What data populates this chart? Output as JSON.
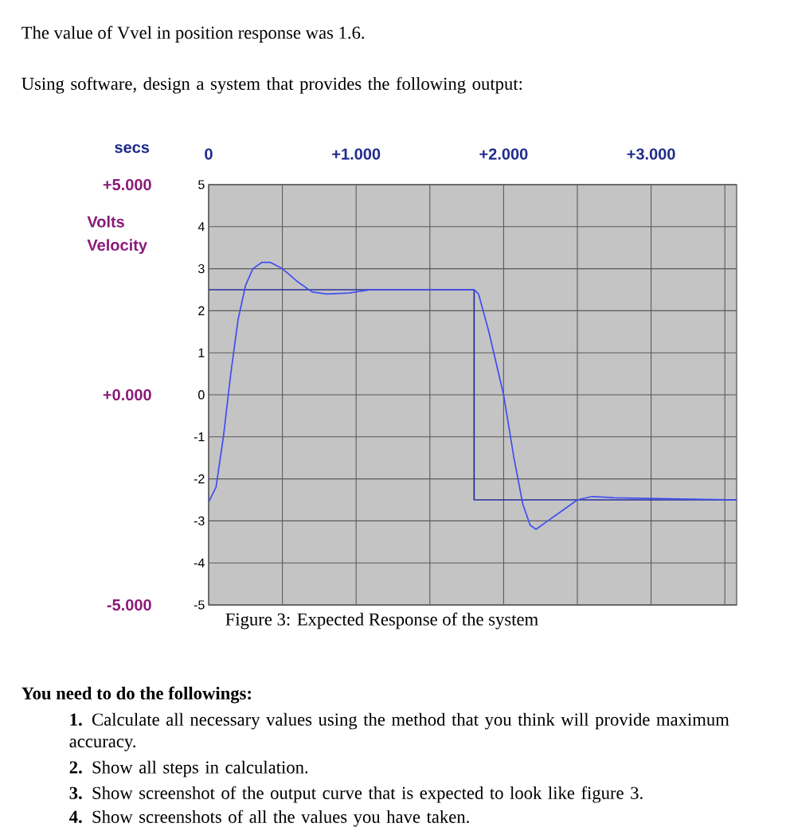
{
  "chart_data": {
    "type": "line",
    "title": "The value of Vvel in position response was 1.6.",
    "subtitle": "Using software, design a system that provides the following output:",
    "xlabel": "secs",
    "y2label": "Volts Velocity",
    "annotations": [
      "Figure 3: Expected Response of the system",
      "**You need to do the followings:**",
      "**1.** Calculate all necessary values using the method that you think will provide maximum accuracy.",
      "**2.** Show all steps in calculation.",
      "**3.** Show screenshot of the output curve that is expected to look like figure 3.",
      "**4.** Show screenshots of all the values you have taken."
    ],
    "series": [
      {
        "color": "#28309a",
        "x": [
          0,
          1.8,
          1.8,
          3.58
        ],
        "values": [
          2.5,
          2.5,
          -2.5,
          -2.5
        ]
      },
      {
        "color": "#4050f0",
        "x": [
          0,
          0.05,
          0.1,
          0.15,
          0.2,
          0.25,
          0.3,
          0.36,
          0.42,
          0.5,
          0.6,
          0.7,
          0.8,
          0.95,
          1.1,
          1.8,
          1.83,
          1.9,
          2.0,
          2.07,
          2.13,
          2.18,
          2.22,
          2.3,
          2.4,
          2.5,
          2.6,
          2.75,
          3.58
        ],
        "values": [
          -2.55,
          -2.2,
          -1.0,
          0.5,
          1.8,
          2.6,
          3.0,
          3.15,
          3.15,
          3.0,
          2.7,
          2.45,
          2.4,
          2.42,
          2.5,
          2.5,
          2.4,
          1.5,
          0.0,
          -1.5,
          -2.6,
          -3.1,
          -3.2,
          -3.0,
          -2.75,
          -2.5,
          -2.42,
          -2.45,
          -2.5
        ]
      }
    ],
    "xlim": [
      0,
      3.58
    ],
    "xticks": [
      {
        "value": 0,
        "label": "0"
      },
      {
        "value": 0.5,
        "label": null
      },
      {
        "value": 1,
        "label": "+1.000"
      },
      {
        "value": 1.5,
        "label": null
      },
      {
        "value": 2,
        "label": "+2.000"
      },
      {
        "value": 2.5,
        "label": null
      },
      {
        "value": 3,
        "label": "+3.000"
      },
      {
        "value": 3.5,
        "label": null
      }
    ],
    "ylim": [
      -5,
      5
    ],
    "yticks": [
      -5,
      -4,
      -3,
      -2,
      -1,
      0,
      1,
      2,
      3,
      4,
      5
    ],
    "y2lim": [
      -5,
      5
    ],
    "y2ticks": [
      {
        "value": -5,
        "label": "-5.000"
      },
      {
        "value": 0,
        "label": "+0.000"
      },
      {
        "value": 5,
        "label": "+5.000"
      }
    ],
    "grid": true
  }
}
